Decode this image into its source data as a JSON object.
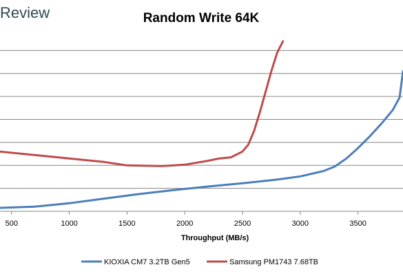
{
  "brand": {
    "text": "Review"
  },
  "chart_data": {
    "type": "line",
    "title": "Random Write 64K",
    "xlabel": "Throughput (MB/s)",
    "ylabel": "",
    "xlim": [
      400,
      3890
    ],
    "ylim": [
      0,
      8.6
    ],
    "x_ticks": [
      500,
      1000,
      1500,
      2000,
      2500,
      3000,
      3500
    ],
    "y_gridlines": [
      1,
      2,
      3,
      4,
      5,
      6,
      7
    ],
    "grid": "horizontal",
    "legend_position": "bottom",
    "series": [
      {
        "name": "KIOXIA CM7 3.2TB Gen5",
        "color": "#4a7ebb",
        "points": [
          [
            400,
            0.15
          ],
          [
            700,
            0.2
          ],
          [
            1000,
            0.35
          ],
          [
            1300,
            0.55
          ],
          [
            1600,
            0.75
          ],
          [
            1900,
            0.92
          ],
          [
            2200,
            1.08
          ],
          [
            2500,
            1.22
          ],
          [
            2800,
            1.38
          ],
          [
            3000,
            1.52
          ],
          [
            3200,
            1.75
          ],
          [
            3300,
            1.95
          ],
          [
            3400,
            2.3
          ],
          [
            3500,
            2.75
          ],
          [
            3600,
            3.25
          ],
          [
            3700,
            3.8
          ],
          [
            3800,
            4.4
          ],
          [
            3860,
            4.95
          ],
          [
            3890,
            6.1
          ]
        ]
      },
      {
        "name": "Samsung PM1743 7.68TB",
        "color": "#be4b48",
        "points": [
          [
            400,
            2.6
          ],
          [
            700,
            2.45
          ],
          [
            1000,
            2.3
          ],
          [
            1300,
            2.15
          ],
          [
            1500,
            2.0
          ],
          [
            1800,
            1.97
          ],
          [
            2000,
            2.03
          ],
          [
            2200,
            2.2
          ],
          [
            2300,
            2.3
          ],
          [
            2400,
            2.35
          ],
          [
            2500,
            2.6
          ],
          [
            2550,
            2.9
          ],
          [
            2600,
            3.5
          ],
          [
            2650,
            4.3
          ],
          [
            2700,
            5.2
          ],
          [
            2750,
            6.1
          ],
          [
            2800,
            6.9
          ],
          [
            2850,
            7.4
          ]
        ]
      }
    ]
  }
}
